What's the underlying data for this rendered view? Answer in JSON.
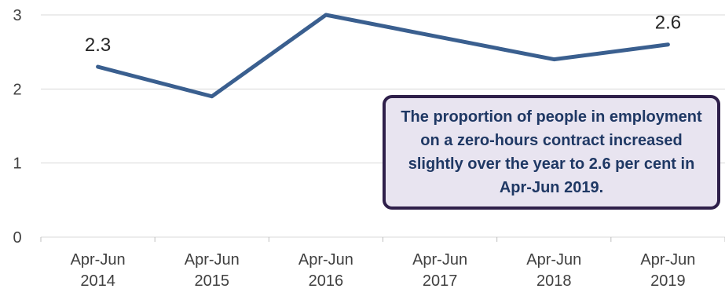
{
  "chart_data": {
    "type": "line",
    "categories": [
      [
        "Apr-Jun",
        "2014"
      ],
      [
        "Apr-Jun",
        "2015"
      ],
      [
        "Apr-Jun",
        "2016"
      ],
      [
        "Apr-Jun",
        "2017"
      ],
      [
        "Apr-Jun",
        "2018"
      ],
      [
        "Apr-Jun",
        "2019"
      ]
    ],
    "series": [
      {
        "values": [
          2.3,
          1.9,
          3.0,
          2.7,
          2.4,
          2.6
        ],
        "color": "#3a5f8f"
      }
    ],
    "data_labels": [
      {
        "index": 0,
        "text": "2.3"
      },
      {
        "index": 5,
        "text": "2.6"
      }
    ],
    "yticks": [
      "0",
      "1",
      "2",
      "3"
    ],
    "ylim": [
      0,
      3
    ],
    "grid": true,
    "title": "",
    "xlabel": "",
    "ylabel": "",
    "annotation": "The proportion of people in employment on a zero-hours contract increased slightly over the year to 2.6 per cent in Apr-Jun 2019."
  }
}
